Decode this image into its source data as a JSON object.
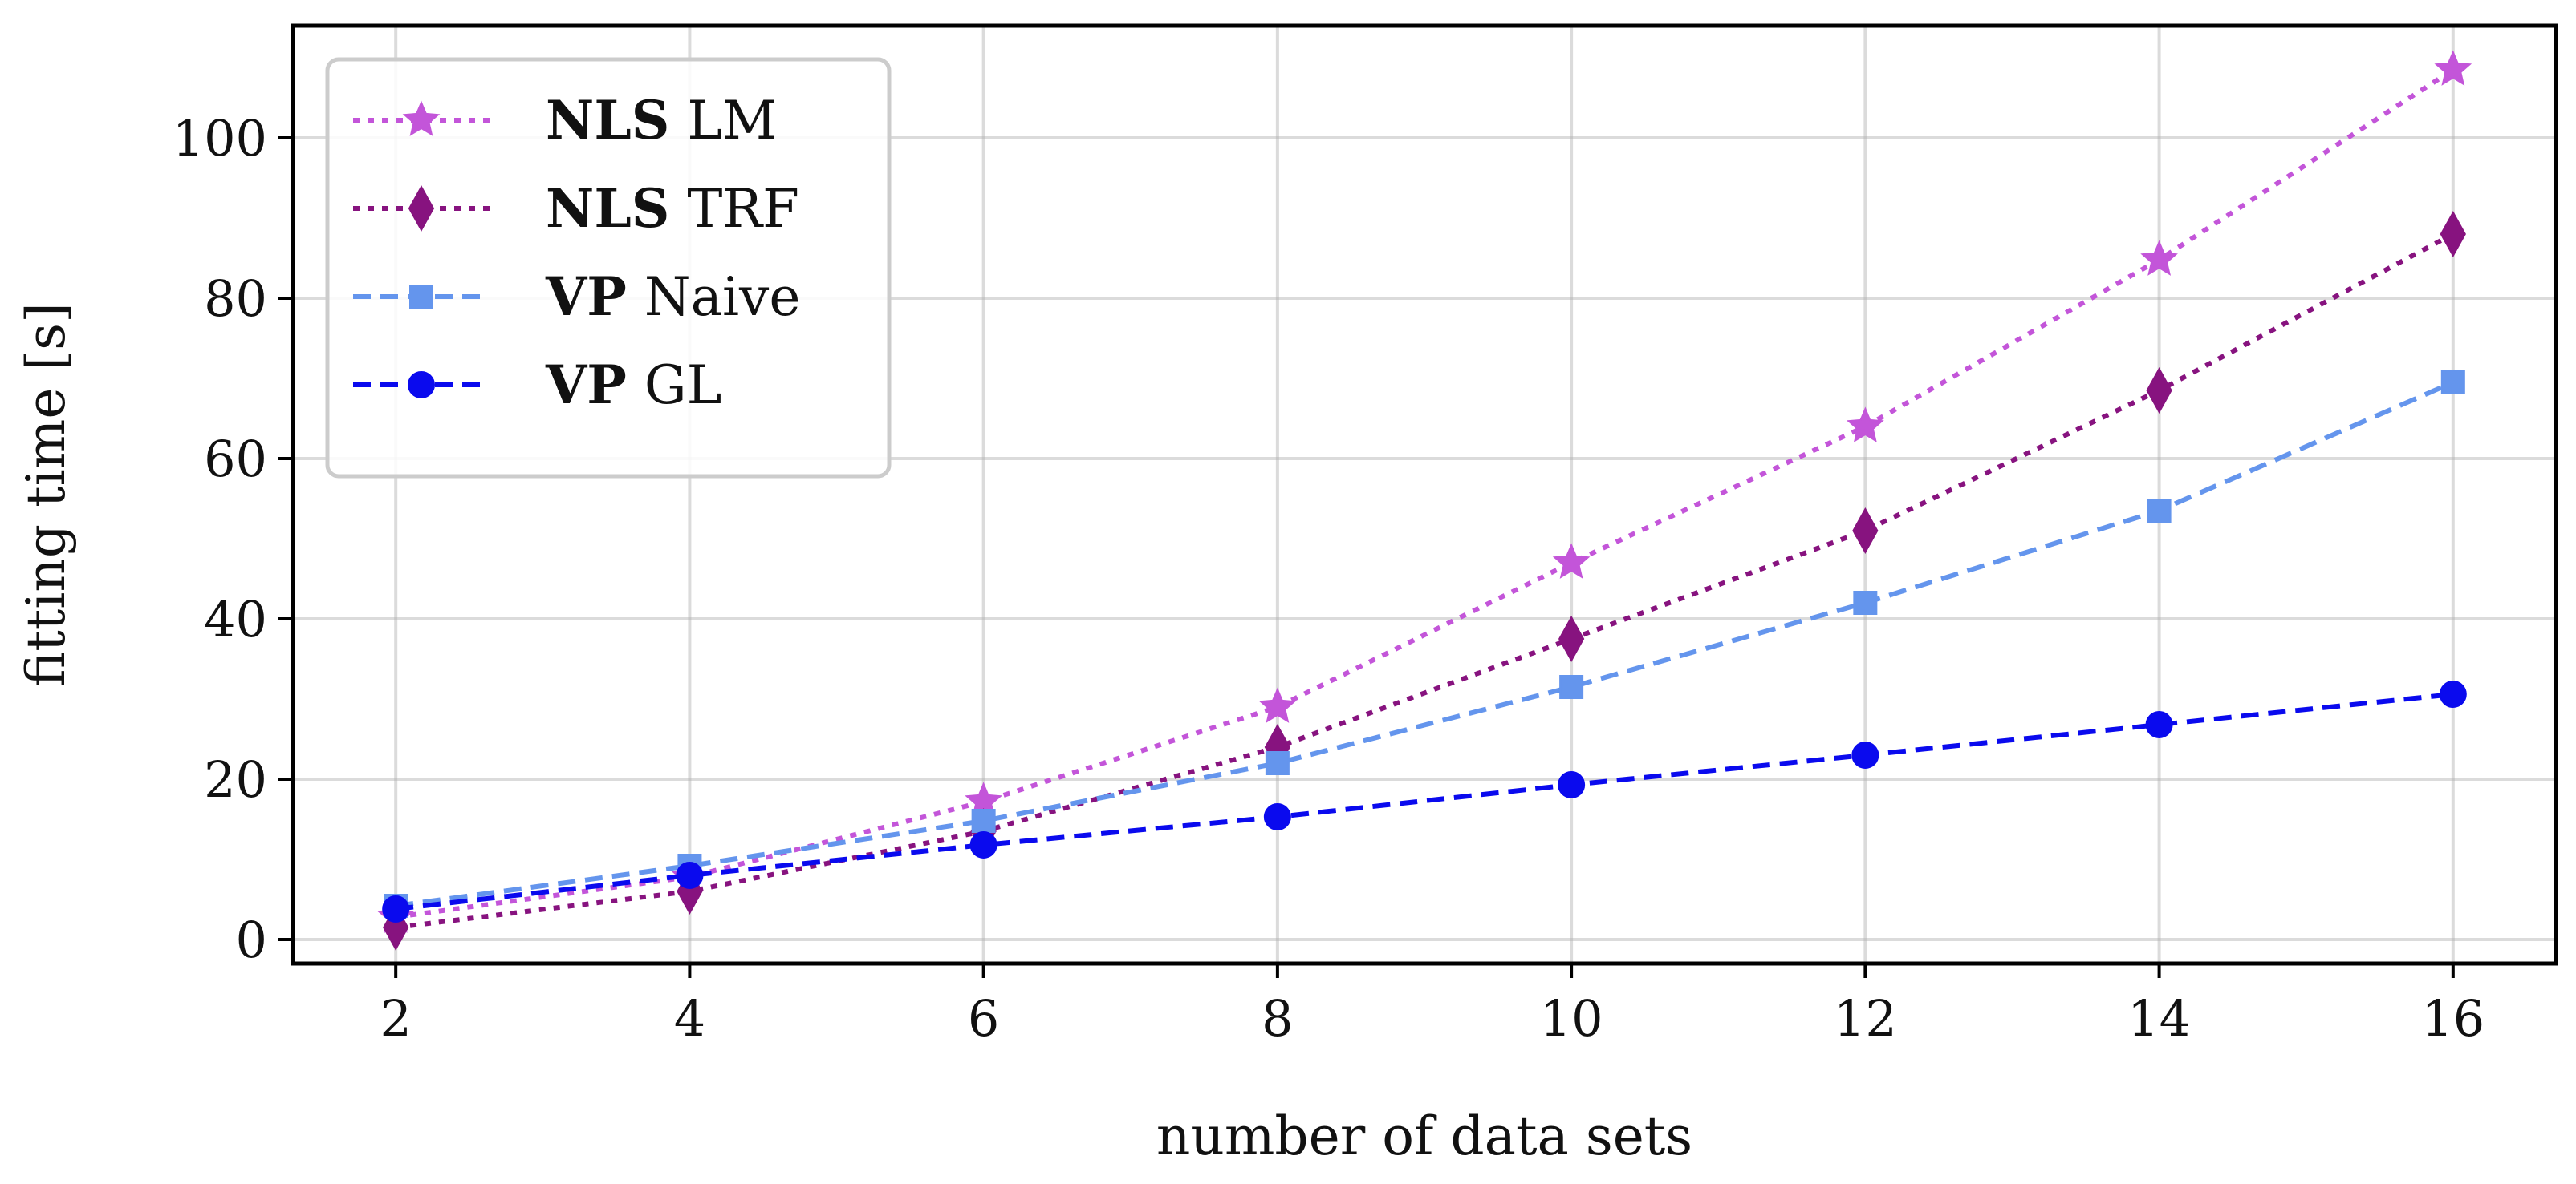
{
  "chart_data": {
    "type": "line",
    "xlabel": "number of data sets",
    "ylabel": "fitting time [s]",
    "xlim": [
      1.3,
      16.7
    ],
    "ylim": [
      -3,
      114
    ],
    "x_ticks": [
      2,
      4,
      6,
      8,
      10,
      12,
      14,
      16
    ],
    "y_ticks": [
      0,
      20,
      40,
      60,
      80,
      100
    ],
    "grid": true,
    "legend_position": "top-left",
    "x": [
      2,
      4,
      6,
      8,
      10,
      12,
      14,
      16
    ],
    "series": [
      {
        "name_bold": "NLS",
        "name_rest": "LM",
        "color": "#c355d9",
        "linestyle": "dotted",
        "marker": "star",
        "values": [
          2.8,
          7.8,
          17.2,
          29.0,
          47.0,
          64.0,
          84.8,
          108.5
        ]
      },
      {
        "name_bold": "NLS",
        "name_rest": "TRF",
        "color": "#87137f",
        "linestyle": "dotted",
        "marker": "diamond",
        "values": [
          1.5,
          6.0,
          13.5,
          24.0,
          37.5,
          51.0,
          68.5,
          88.0
        ]
      },
      {
        "name_bold": "VP",
        "name_rest": "Naive",
        "color": "#6495ed",
        "linestyle": "dashed",
        "marker": "square",
        "values": [
          4.2,
          9.2,
          14.8,
          22.0,
          31.5,
          42.0,
          53.5,
          69.5
        ]
      },
      {
        "name_bold": "VP",
        "name_rest": "GL",
        "color": "#0a0aee",
        "linestyle": "dashed",
        "marker": "circle",
        "values": [
          3.8,
          8.0,
          11.8,
          15.3,
          19.3,
          23.0,
          26.8,
          30.6
        ]
      }
    ]
  }
}
